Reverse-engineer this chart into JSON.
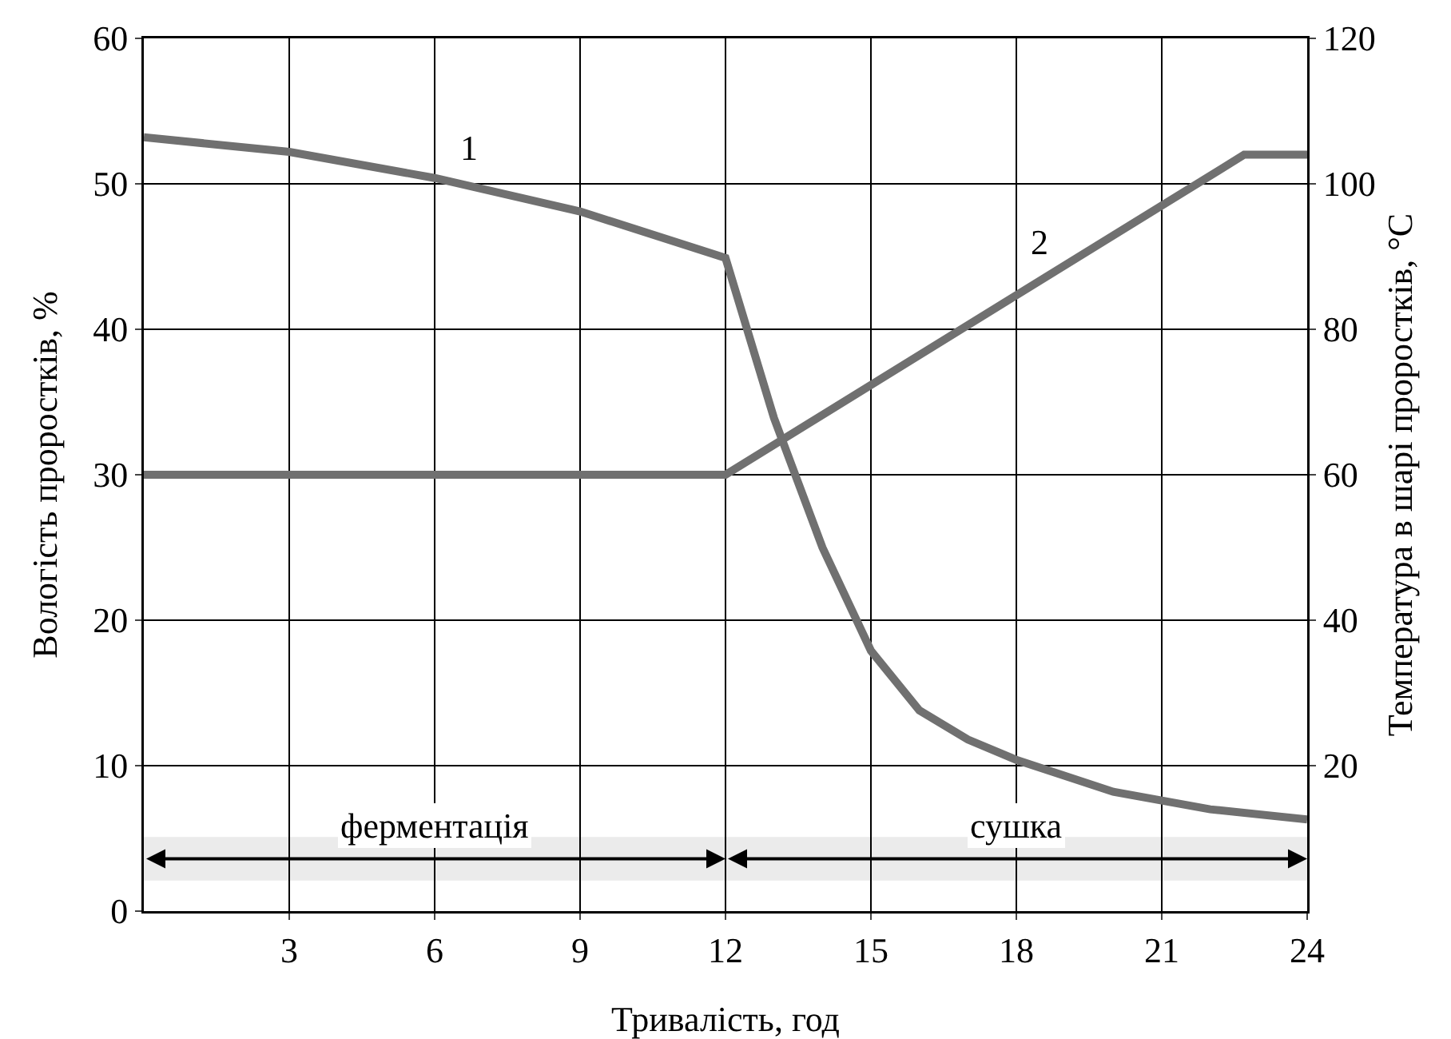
{
  "chart_data": {
    "type": "line",
    "xlabel": "Тривалість, год",
    "ylabel": "Вологість проростків, %",
    "y2label": "Температура в шарі проростків, °C",
    "series": [
      {
        "name": "1",
        "color": "#707070",
        "x": [
          0,
          3,
          6,
          9,
          12,
          13,
          14,
          15,
          16,
          17,
          18,
          20,
          22,
          24
        ],
        "values": [
          53.2,
          52.2,
          50.4,
          48.1,
          44.9,
          33.9,
          25,
          17.9,
          13.8,
          11.8,
          10.4,
          8.2,
          7,
          6.3
        ]
      },
      {
        "name": "2",
        "color": "#707070",
        "axis": "y2",
        "x": [
          0,
          12,
          22.7,
          24
        ],
        "values": [
          60,
          60,
          104,
          104
        ]
      }
    ],
    "xlim": [
      0,
      24
    ],
    "xticks": [
      3,
      6,
      9,
      12,
      15,
      18,
      21,
      24
    ],
    "ylim": [
      0,
      60
    ],
    "yticks": [
      0,
      10,
      20,
      30,
      40,
      50,
      60
    ],
    "y2lim": [
      0,
      120
    ],
    "y2ticks": [
      20,
      40,
      60,
      80,
      100,
      120
    ],
    "bands": [
      {
        "axis": "x",
        "from": 0,
        "to": 12,
        "label": "ферментація"
      },
      {
        "axis": "x",
        "from": 12,
        "to": 24,
        "label": "сушка"
      }
    ],
    "grid": true,
    "legend": false,
    "marker": "none",
    "line_style": "solid"
  }
}
